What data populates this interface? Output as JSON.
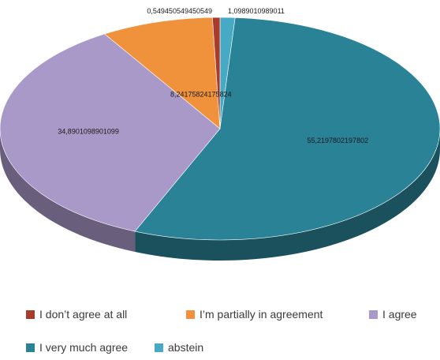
{
  "chart_data": {
    "type": "pie",
    "style": "3d-tilted",
    "legend_position": "bottom",
    "series": [
      {
        "name": "I don't agree at all",
        "value": 0.549450549450549,
        "label": "0,549450549450549",
        "color": "#a83a2e"
      },
      {
        "name": "I'm partially in agreement",
        "value": 8.24175824175824,
        "label": "8,24175824175824",
        "color": "#f0923b"
      },
      {
        "name": "I agree",
        "value": 34.8901098901099,
        "label": "34,8901098901099",
        "color": "#a999c8"
      },
      {
        "name": "I very much agree",
        "value": 55.2197802197802,
        "label": "55,2197802197802",
        "color": "#2a8296"
      },
      {
        "name": "abstein",
        "value": 1.0989010989011,
        "label": "1,0989010989011",
        "color": "#46aac4"
      }
    ],
    "slice_order_clockwise_from_top": [
      "abstein",
      "I very much agree",
      "I agree",
      "I'm partially in agreement",
      "I don't agree at all"
    ]
  },
  "legend": {
    "items": [
      {
        "label": "I don’t agree at all",
        "color": "#a83a2e"
      },
      {
        "label": "I’m partially in agreement",
        "color": "#f0923b"
      },
      {
        "label": "I agree",
        "color": "#a999c8"
      },
      {
        "label": "I very much agree",
        "color": "#2a8296"
      },
      {
        "label": "abstein",
        "color": "#46aac4"
      }
    ]
  }
}
